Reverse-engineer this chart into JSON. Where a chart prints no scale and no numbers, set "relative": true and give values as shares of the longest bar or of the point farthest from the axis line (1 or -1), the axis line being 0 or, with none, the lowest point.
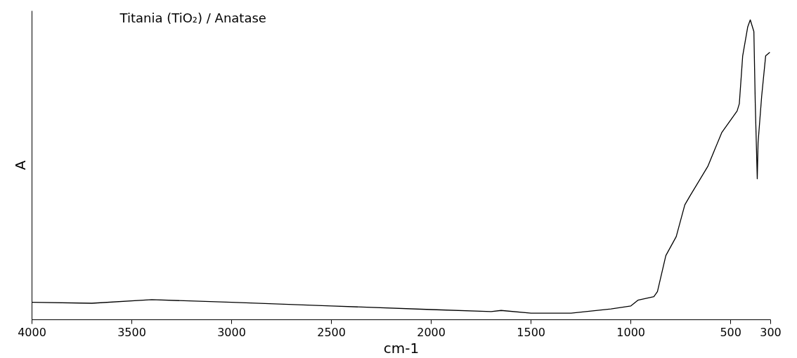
{
  "chart_data": {
    "type": "line",
    "relative": true,
    "xlabel": "cm-1",
    "ylabel": "A",
    "annotations": [
      "Titania (TiO₂) / Anatase"
    ],
    "xlim": [
      4000,
      300
    ],
    "xticks": [
      4000,
      3500,
      3000,
      2500,
      2000,
      1500,
      1000,
      500,
      300
    ],
    "grid": false,
    "marker": "none",
    "line_style": "solid",
    "x": [
      4000,
      3700,
      3400,
      3000,
      2500,
      2000,
      1700,
      1650,
      1500,
      1300,
      1200,
      1100,
      1000,
      965,
      885,
      867,
      825,
      773,
      730,
      703,
      615,
      545,
      468,
      457,
      440,
      415,
      402,
      384,
      377,
      367,
      363,
      345,
      325,
      304
    ],
    "series": [
      {
        "color": "#000000",
        "values": [
          0.058,
          0.055,
          0.067,
          0.058,
          0.046,
          0.034,
          0.027,
          0.031,
          0.022,
          0.022,
          0.029,
          0.036,
          0.046,
          0.065,
          0.077,
          0.094,
          0.214,
          0.277,
          0.383,
          0.414,
          0.511,
          0.624,
          0.696,
          0.72,
          0.88,
          0.976,
          1.0,
          0.961,
          0.72,
          0.47,
          0.59,
          0.745,
          0.88,
          0.892
        ]
      }
    ]
  }
}
